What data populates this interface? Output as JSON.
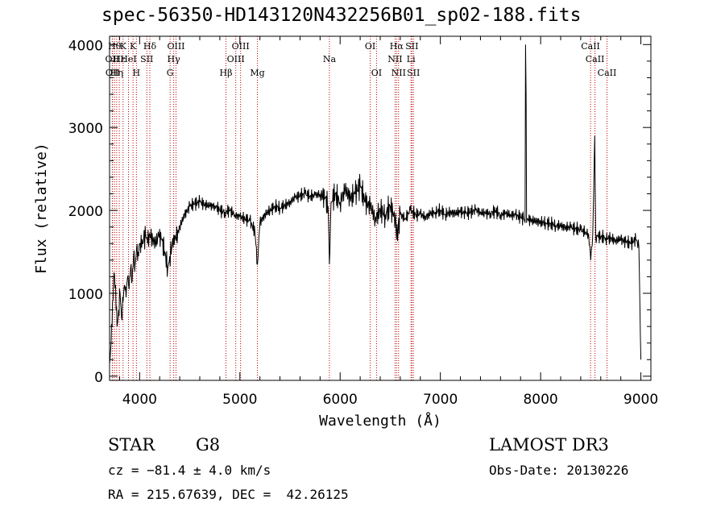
{
  "title": "spec-56350-HD143120N432256B01_sp02-188.fits",
  "info": {
    "object_type": "STAR",
    "subclass": "G8",
    "survey": "LAMOST DR3",
    "cz": "cz = −81.4 ± 4.0 km/s",
    "obs_date": "Obs-Date: 20130226",
    "radec": "RA = 215.67639, DEC =  42.26125"
  },
  "chart_data": {
    "type": "line",
    "title": "spec-56350-HD143120N432256B01_sp02-188.fits",
    "xlabel": "Wavelength (Å)",
    "ylabel": "Flux (relative)",
    "xlim": [
      3700,
      9100
    ],
    "ylim": [
      -50,
      4100
    ],
    "xticks": [
      4000,
      5000,
      6000,
      7000,
      8000,
      9000
    ],
    "yticks": [
      0,
      1000,
      2000,
      3000,
      4000
    ],
    "grid": false,
    "series": [
      {
        "x": [
          3700,
          3715,
          3730,
          3745,
          3760,
          3775,
          3790,
          3805,
          3820,
          3835,
          3850,
          3865,
          3880,
          3895,
          3910,
          3925,
          3940,
          3955,
          3970,
          3985,
          4000,
          4020,
          4040,
          4060,
          4080,
          4100,
          4130,
          4160,
          4190,
          4220,
          4250,
          4280,
          4300,
          4320,
          4340,
          4360,
          4380,
          4400,
          4450,
          4500,
          4550,
          4600,
          4650,
          4700,
          4750,
          4800,
          4850,
          4900,
          4950,
          5000,
          5050,
          5100,
          5150,
          5175,
          5200,
          5250,
          5300,
          5350,
          5400,
          5450,
          5500,
          5550,
          5600,
          5650,
          5700,
          5750,
          5800,
          5850,
          5880,
          5893,
          5910,
          5950,
          6000,
          6050,
          6100,
          6150,
          6200,
          6250,
          6300,
          6350,
          6400,
          6450,
          6500,
          6550,
          6563,
          6600,
          6650,
          6700,
          6750,
          6800,
          6850,
          6900,
          6950,
          7000,
          7050,
          7100,
          7150,
          7200,
          7250,
          7300,
          7350,
          7400,
          7450,
          7500,
          7550,
          7600,
          7650,
          7700,
          7750,
          7800,
          7830,
          7845,
          7850,
          7855,
          7860,
          7870,
          7900,
          7950,
          8000,
          8050,
          8100,
          8150,
          8200,
          8250,
          8300,
          8350,
          8400,
          8450,
          8480,
          8500,
          8520,
          8540,
          8550,
          8560,
          8570,
          8600,
          8650,
          8700,
          8750,
          8800,
          8850,
          8900,
          8950,
          8980,
          9000
        ],
        "y": [
          150,
          400,
          900,
          1250,
          1100,
          600,
          800,
          1000,
          700,
          900,
          1100,
          950,
          1200,
          1050,
          1300,
          1150,
          1450,
          1350,
          1550,
          1500,
          1600,
          1550,
          1650,
          1700,
          1600,
          1720,
          1650,
          1600,
          1700,
          1650,
          1500,
          1300,
          1450,
          1550,
          1700,
          1650,
          1750,
          1800,
          1950,
          2050,
          2080,
          2100,
          2070,
          2050,
          2060,
          2000,
          1980,
          2000,
          1950,
          1920,
          1900,
          1870,
          1750,
          1350,
          1850,
          1950,
          2000,
          2050,
          2030,
          2060,
          2100,
          2150,
          2180,
          2200,
          2170,
          2180,
          2200,
          2150,
          2050,
          1350,
          2100,
          2200,
          2100,
          2250,
          2150,
          2200,
          2300,
          2100,
          2050,
          1900,
          2000,
          1950,
          2050,
          1900,
          1650,
          1950,
          1900,
          2000,
          1950,
          1950,
          1920,
          1960,
          1980,
          2000,
          1950,
          1980,
          1960,
          1990,
          1960,
          1980,
          2000,
          1980,
          1960,
          1970,
          1990,
          1950,
          1960,
          1950,
          1940,
          1920,
          1900,
          1850,
          4000,
          3400,
          1850,
          1900,
          1880,
          1870,
          1860,
          1850,
          1840,
          1820,
          1810,
          1800,
          1790,
          1780,
          1760,
          1740,
          1700,
          1400,
          1700,
          2900,
          1650,
          1700,
          1690,
          1680,
          1670,
          1660,
          1640,
          1650,
          1620,
          1600,
          1650,
          1560,
          200
        ]
      }
    ],
    "lines": [
      {
        "wave": 3727,
        "row": 1,
        "label": "OII"
      },
      {
        "wave": 3730,
        "row": 2,
        "label": "OII"
      },
      {
        "wave": 3750,
        "row": 0,
        "label": "Hθ"
      },
      {
        "wave": 3771,
        "row": 2,
        "label": "Hη"
      },
      {
        "wave": 3797,
        "row": 1,
        "label": "Hε"
      },
      {
        "wave": 3835,
        "row": 0,
        "label": "K"
      },
      {
        "wave": 3889,
        "row": 1,
        "label": "HeI"
      },
      {
        "wave": 3934,
        "row": 0,
        "label": "K"
      },
      {
        "wave": 3968,
        "row": 2,
        "label": "H"
      },
      {
        "wave": 4072,
        "row": 1,
        "label": "SII"
      },
      {
        "wave": 4102,
        "row": 0,
        "label": "Hδ"
      },
      {
        "wave": 4304,
        "row": 2,
        "label": "G"
      },
      {
        "wave": 4340,
        "row": 1,
        "label": "Hγ"
      },
      {
        "wave": 4363,
        "row": 0,
        "label": "OIII"
      },
      {
        "wave": 4861,
        "row": 2,
        "label": "Hβ"
      },
      {
        "wave": 4959,
        "row": 1,
        "label": "OIII"
      },
      {
        "wave": 5007,
        "row": 0,
        "label": "OIII"
      },
      {
        "wave": 5175,
        "row": 2,
        "label": "Mg"
      },
      {
        "wave": 5893,
        "row": 1,
        "label": "Na"
      },
      {
        "wave": 6300,
        "row": 0,
        "label": "OI"
      },
      {
        "wave": 6363,
        "row": 2,
        "label": "OI"
      },
      {
        "wave": 6548,
        "row": 1,
        "label": "NII"
      },
      {
        "wave": 6563,
        "row": 0,
        "label": "Hα"
      },
      {
        "wave": 6583,
        "row": 2,
        "label": "NII"
      },
      {
        "wave": 6707,
        "row": 1,
        "label": "Li"
      },
      {
        "wave": 6716,
        "row": 0,
        "label": "SII"
      },
      {
        "wave": 6731,
        "row": 2,
        "label": "SII"
      },
      {
        "wave": 8498,
        "row": 0,
        "label": "CaII"
      },
      {
        "wave": 8542,
        "row": 1,
        "label": "CaII"
      },
      {
        "wave": 8662,
        "row": 2,
        "label": "CaII"
      }
    ],
    "colors": {
      "spectrum": "#000000",
      "line_marker": "#c00000",
      "axes": "#000000"
    }
  }
}
